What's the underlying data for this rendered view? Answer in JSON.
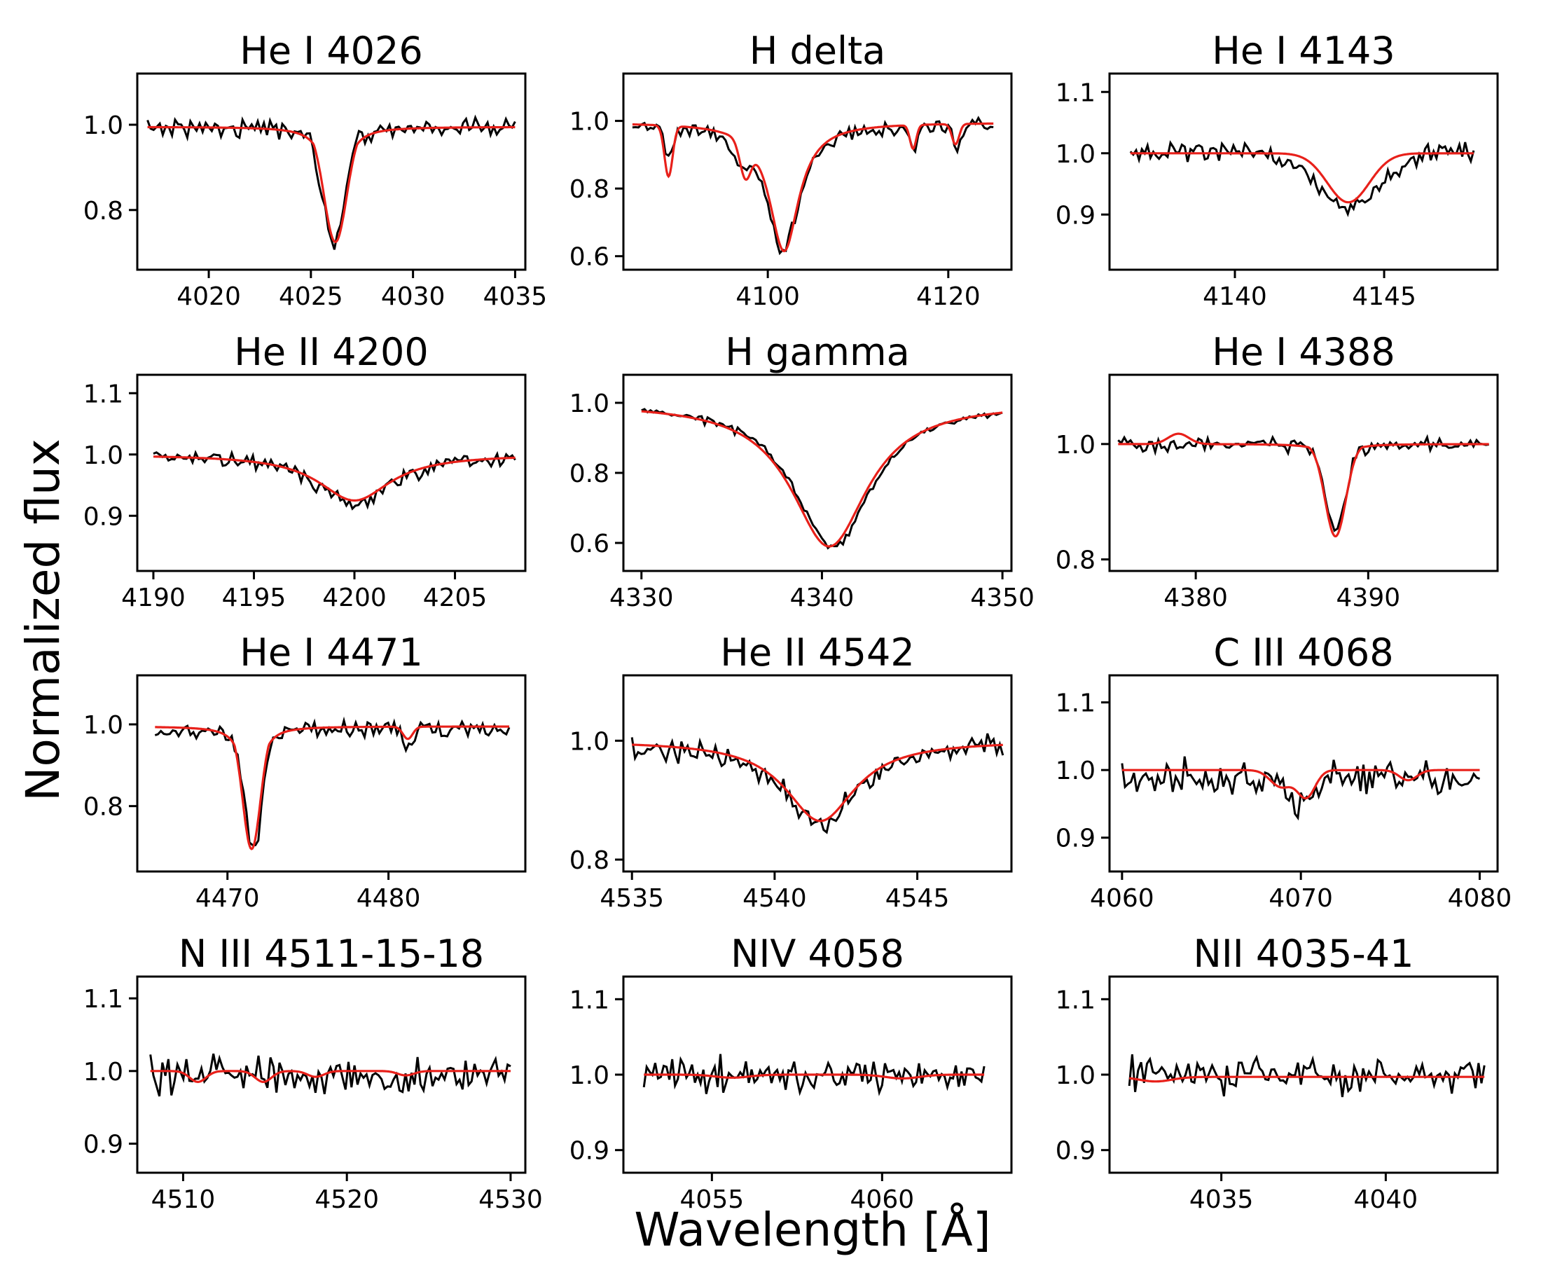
{
  "figure": {
    "ylabel": "Normalized flux",
    "xlabel": "Wavelength [Å]",
    "colors": {
      "observed": "#000000",
      "model": "#e8201a"
    }
  },
  "chart_data": [
    {
      "type": "line",
      "title": "He I 4026",
      "xlim": [
        4016.5,
        4035.5
      ],
      "ylim": [
        0.66,
        1.12
      ],
      "xticks": [
        4020,
        4025,
        4030,
        4035
      ],
      "xtick_labels": [
        "4020",
        "4025",
        "4030",
        "4035"
      ],
      "yticks": [
        0.8,
        1.0
      ],
      "ytick_labels": [
        "0.8",
        "1.0"
      ],
      "x_range": [
        4017,
        4035
      ],
      "observed": {
        "continuum": 0.995,
        "noise": 0.01,
        "lines": [
          {
            "center": 4026.1,
            "depth": 0.27,
            "gw": 0.55,
            "lw": 0.4
          }
        ]
      },
      "model": {
        "continuum": 0.995,
        "lines": [
          {
            "center": 4026.2,
            "depth": 0.27,
            "gw": 0.55,
            "lw": 0.45
          }
        ]
      }
    },
    {
      "type": "line",
      "title": "H delta",
      "xlim": [
        4084,
        4127
      ],
      "ylim": [
        0.56,
        1.14
      ],
      "xticks": [
        4100,
        4120
      ],
      "xtick_labels": [
        "4100",
        "4120"
      ],
      "yticks": [
        0.6,
        0.8,
        1.0
      ],
      "ytick_labels": [
        "0.6",
        "0.8",
        "1.0"
      ],
      "x_range": [
        4085,
        4125
      ],
      "observed": {
        "continuum": 0.99,
        "noise": 0.01,
        "lines": [
          {
            "center": 4101.7,
            "depth": 0.37,
            "gw": 1.5,
            "lw": 2.2
          },
          {
            "center": 4089.0,
            "depth": 0.1,
            "gw": 0.4,
            "lw": 0.1
          },
          {
            "center": 4097.0,
            "depth": 0.06,
            "gw": 1.0,
            "lw": 0.1
          },
          {
            "center": 4116.0,
            "depth": 0.07,
            "gw": 0.4,
            "lw": 0.1
          },
          {
            "center": 4121.0,
            "depth": 0.07,
            "gw": 0.5,
            "lw": 0.1
          }
        ]
      },
      "model": {
        "continuum": 0.995,
        "lines": [
          {
            "center": 4101.8,
            "depth": 0.38,
            "gw": 1.3,
            "lw": 2.0
          },
          {
            "center": 4089.0,
            "depth": 0.15,
            "gw": 0.45,
            "lw": 0.05
          },
          {
            "center": 4097.5,
            "depth": 0.1,
            "gw": 0.6,
            "lw": 0.05
          },
          {
            "center": 4116.1,
            "depth": 0.07,
            "gw": 0.35,
            "lw": 0.05
          },
          {
            "center": 4120.8,
            "depth": 0.06,
            "gw": 0.4,
            "lw": 0.05
          }
        ]
      }
    },
    {
      "type": "line",
      "title": "He I 4143",
      "xlim": [
        4135.8,
        4148.8
      ],
      "ylim": [
        0.81,
        1.13
      ],
      "xticks": [
        4140,
        4145
      ],
      "xtick_labels": [
        "4140",
        "4145"
      ],
      "yticks": [
        0.9,
        1.0,
        1.1
      ],
      "ytick_labels": [
        "0.9",
        "1.0",
        "1.1"
      ],
      "x_range": [
        4136.5,
        4148
      ],
      "observed": {
        "continuum": 1.003,
        "noise": 0.007,
        "lines": [
          {
            "center": 4143.8,
            "depth": 0.09,
            "gw": 1.1,
            "lw": 0.3
          }
        ]
      },
      "model": {
        "continuum": 1.0,
        "lines": [
          {
            "center": 4143.8,
            "depth": 0.08,
            "gw": 0.7,
            "lw": 0.15
          }
        ]
      }
    },
    {
      "type": "line",
      "title": "He II 4200",
      "xlim": [
        4189.2,
        4208.5
      ],
      "ylim": [
        0.81,
        1.13
      ],
      "xticks": [
        4190,
        4195,
        4200,
        4205
      ],
      "xtick_labels": [
        "4190",
        "4195",
        "4200",
        "4205"
      ],
      "yticks": [
        0.9,
        1.0,
        1.1
      ],
      "ytick_labels": [
        "0.9",
        "1.0",
        "1.1"
      ],
      "x_range": [
        4190,
        4208
      ],
      "observed": {
        "continuum": 1.0,
        "noise": 0.006,
        "lines": [
          {
            "center": 4200.0,
            "depth": 0.08,
            "gw": 1.5,
            "lw": 2.3
          }
        ]
      },
      "model": {
        "continuum": 1.0,
        "lines": [
          {
            "center": 4200.0,
            "depth": 0.075,
            "gw": 1.4,
            "lw": 2.2
          }
        ]
      }
    },
    {
      "type": "line",
      "title": "H gamma",
      "xlim": [
        4329,
        4350.5
      ],
      "ylim": [
        0.52,
        1.08
      ],
      "xticks": [
        4330,
        4340,
        4350
      ],
      "xtick_labels": [
        "4330",
        "4340",
        "4350"
      ],
      "yticks": [
        0.6,
        0.8,
        1.0
      ],
      "ytick_labels": [
        "0.6",
        "0.8",
        "1.0"
      ],
      "x_range": [
        4330,
        4350
      ],
      "observed": {
        "continuum": 1.0,
        "noise": 0.005,
        "lines": [
          {
            "center": 4340.6,
            "depth": 0.41,
            "gw": 1.0,
            "lw": 2.6
          }
        ]
      },
      "model": {
        "continuum": 1.0,
        "lines": [
          {
            "center": 4340.4,
            "depth": 0.41,
            "gw": 1.0,
            "lw": 2.6
          }
        ]
      }
    },
    {
      "type": "line",
      "title": "He I 4388",
      "xlim": [
        4375,
        4397.5
      ],
      "ylim": [
        0.78,
        1.12
      ],
      "xticks": [
        4380,
        4390
      ],
      "xtick_labels": [
        "4380",
        "4390"
      ],
      "yticks": [
        0.8,
        1.0
      ],
      "ytick_labels": [
        "0.8",
        "1.0"
      ],
      "x_range": [
        4375.5,
        4397
      ],
      "observed": {
        "continuum": 1.0,
        "noise": 0.006,
        "lines": [
          {
            "center": 4388.1,
            "depth": 0.15,
            "gw": 0.6,
            "lw": 0.4
          }
        ]
      },
      "model": {
        "continuum": 1.0,
        "lines": [
          {
            "center": 4388.1,
            "depth": 0.16,
            "gw": 0.6,
            "lw": 0.3
          },
          {
            "center": 4379.0,
            "depth": -0.018,
            "gw": 0.6,
            "lw": 0.0
          }
        ]
      }
    },
    {
      "type": "line",
      "title": "He I 4471",
      "xlim": [
        4464.4,
        4488.5
      ],
      "ylim": [
        0.64,
        1.12
      ],
      "xticks": [
        4470,
        4480
      ],
      "xtick_labels": [
        "4470",
        "4480"
      ],
      "yticks": [
        0.8,
        1.0
      ],
      "ytick_labels": [
        "0.8",
        "1.0"
      ],
      "x_range": [
        4465.5,
        4487.5
      ],
      "observed": {
        "continuum": 0.99,
        "noise": 0.01,
        "lines": [
          {
            "center": 4471.6,
            "depth": 0.29,
            "gw": 0.55,
            "lw": 0.4
          },
          {
            "center": 4481.2,
            "depth": 0.04,
            "gw": 0.25,
            "lw": 0.05
          }
        ]
      },
      "model": {
        "continuum": 0.995,
        "lines": [
          {
            "center": 4471.5,
            "depth": 0.3,
            "gw": 0.55,
            "lw": 0.45
          },
          {
            "center": 4481.2,
            "depth": 0.03,
            "gw": 0.3,
            "lw": 0.05
          }
        ]
      }
    },
    {
      "type": "line",
      "title": "He II 4542",
      "xlim": [
        4534.7,
        4548.3
      ],
      "ylim": [
        0.78,
        1.11
      ],
      "xticks": [
        4535,
        4540,
        4545
      ],
      "xtick_labels": [
        "4535",
        "4540",
        "4545"
      ],
      "yticks": [
        0.8,
        1.0
      ],
      "ytick_labels": [
        "0.8",
        "1.0"
      ],
      "x_range": [
        4535,
        4548
      ],
      "observed": {
        "continuum": 1.0,
        "noise": 0.01,
        "lines": [
          {
            "center": 4541.6,
            "depth": 0.14,
            "gw": 1.0,
            "lw": 1.6
          }
        ]
      },
      "model": {
        "continuum": 1.0,
        "lines": [
          {
            "center": 4541.6,
            "depth": 0.135,
            "gw": 1.0,
            "lw": 1.5
          }
        ]
      }
    },
    {
      "type": "line",
      "title": "C III 4068",
      "xlim": [
        4059.3,
        4081.0
      ],
      "ylim": [
        0.85,
        1.14
      ],
      "xticks": [
        4060,
        4070,
        4080
      ],
      "xtick_labels": [
        "4060",
        "4070",
        "4080"
      ],
      "yticks": [
        0.9,
        1.0,
        1.1
      ],
      "ytick_labels": [
        "0.9",
        "1.0",
        "1.1"
      ],
      "x_range": [
        4060,
        4080
      ],
      "observed": {
        "continuum": 0.99,
        "noise": 0.014,
        "lines": [
          {
            "center": 4070.0,
            "depth": 0.04,
            "gw": 0.9,
            "lw": 0.3
          }
        ]
      },
      "model": {
        "continuum": 1.0,
        "lines": [
          {
            "center": 4068.9,
            "depth": 0.025,
            "gw": 0.6,
            "lw": 0.1
          },
          {
            "center": 4070.3,
            "depth": 0.04,
            "gw": 0.5,
            "lw": 0.1
          },
          {
            "center": 4076.0,
            "depth": 0.015,
            "gw": 0.5,
            "lw": 0.05
          }
        ]
      }
    },
    {
      "type": "line",
      "title": "N III 4511-15-18",
      "xlim": [
        4507.2,
        4530.9
      ],
      "ylim": [
        0.86,
        1.13
      ],
      "xticks": [
        4510,
        4520,
        4530
      ],
      "xtick_labels": [
        "4510",
        "4520",
        "4530"
      ],
      "yticks": [
        0.9,
        1.0,
        1.1
      ],
      "ytick_labels": [
        "0.9",
        "1.0",
        "1.1"
      ],
      "x_range": [
        4508,
        4530
      ],
      "observed": {
        "continuum": 0.995,
        "noise": 0.012,
        "lines": []
      },
      "model": {
        "continuum": 1.0,
        "lines": [
          {
            "center": 4510.9,
            "depth": 0.015,
            "gw": 0.5,
            "lw": 0.05
          },
          {
            "center": 4514.9,
            "depth": 0.015,
            "gw": 0.5,
            "lw": 0.05
          },
          {
            "center": 4518.1,
            "depth": 0.008,
            "gw": 0.5,
            "lw": 0.05
          },
          {
            "center": 4523.6,
            "depth": 0.006,
            "gw": 0.5,
            "lw": 0.05
          }
        ]
      }
    },
    {
      "type": "line",
      "title": "NIV 4058",
      "xlim": [
        4052.4,
        4063.8
      ],
      "ylim": [
        0.87,
        1.13
      ],
      "xticks": [
        4055,
        4060
      ],
      "xtick_labels": [
        "4055",
        "4060"
      ],
      "yticks": [
        0.9,
        1.0,
        1.1
      ],
      "ytick_labels": [
        "0.9",
        "1.0",
        "1.1"
      ],
      "x_range": [
        4053,
        4063
      ],
      "observed": {
        "continuum": 1.0,
        "noise": 0.01,
        "lines": []
      },
      "model": {
        "continuum": 1.0,
        "lines": [
          {
            "center": 4055.6,
            "depth": 0.004,
            "gw": 0.5,
            "lw": 0.05
          },
          {
            "center": 4060.6,
            "depth": 0.005,
            "gw": 0.5,
            "lw": 0.05
          }
        ]
      }
    },
    {
      "type": "line",
      "title": "NII 4035-41",
      "xlim": [
        4031.6,
        4043.4
      ],
      "ylim": [
        0.87,
        1.13
      ],
      "xticks": [
        4035,
        4040
      ],
      "xtick_labels": [
        "4035",
        "4040"
      ],
      "yticks": [
        0.9,
        1.0,
        1.1
      ],
      "ytick_labels": [
        "0.9",
        "1.0",
        "1.1"
      ],
      "x_range": [
        4032.2,
        4043
      ],
      "observed": {
        "continuum": 1.0,
        "noise": 0.012,
        "lines": []
      },
      "model": {
        "continuum": 0.997,
        "lines": [
          {
            "center": 4033.0,
            "depth": 0.006,
            "gw": 0.5,
            "lw": 0.05
          }
        ]
      }
    }
  ]
}
